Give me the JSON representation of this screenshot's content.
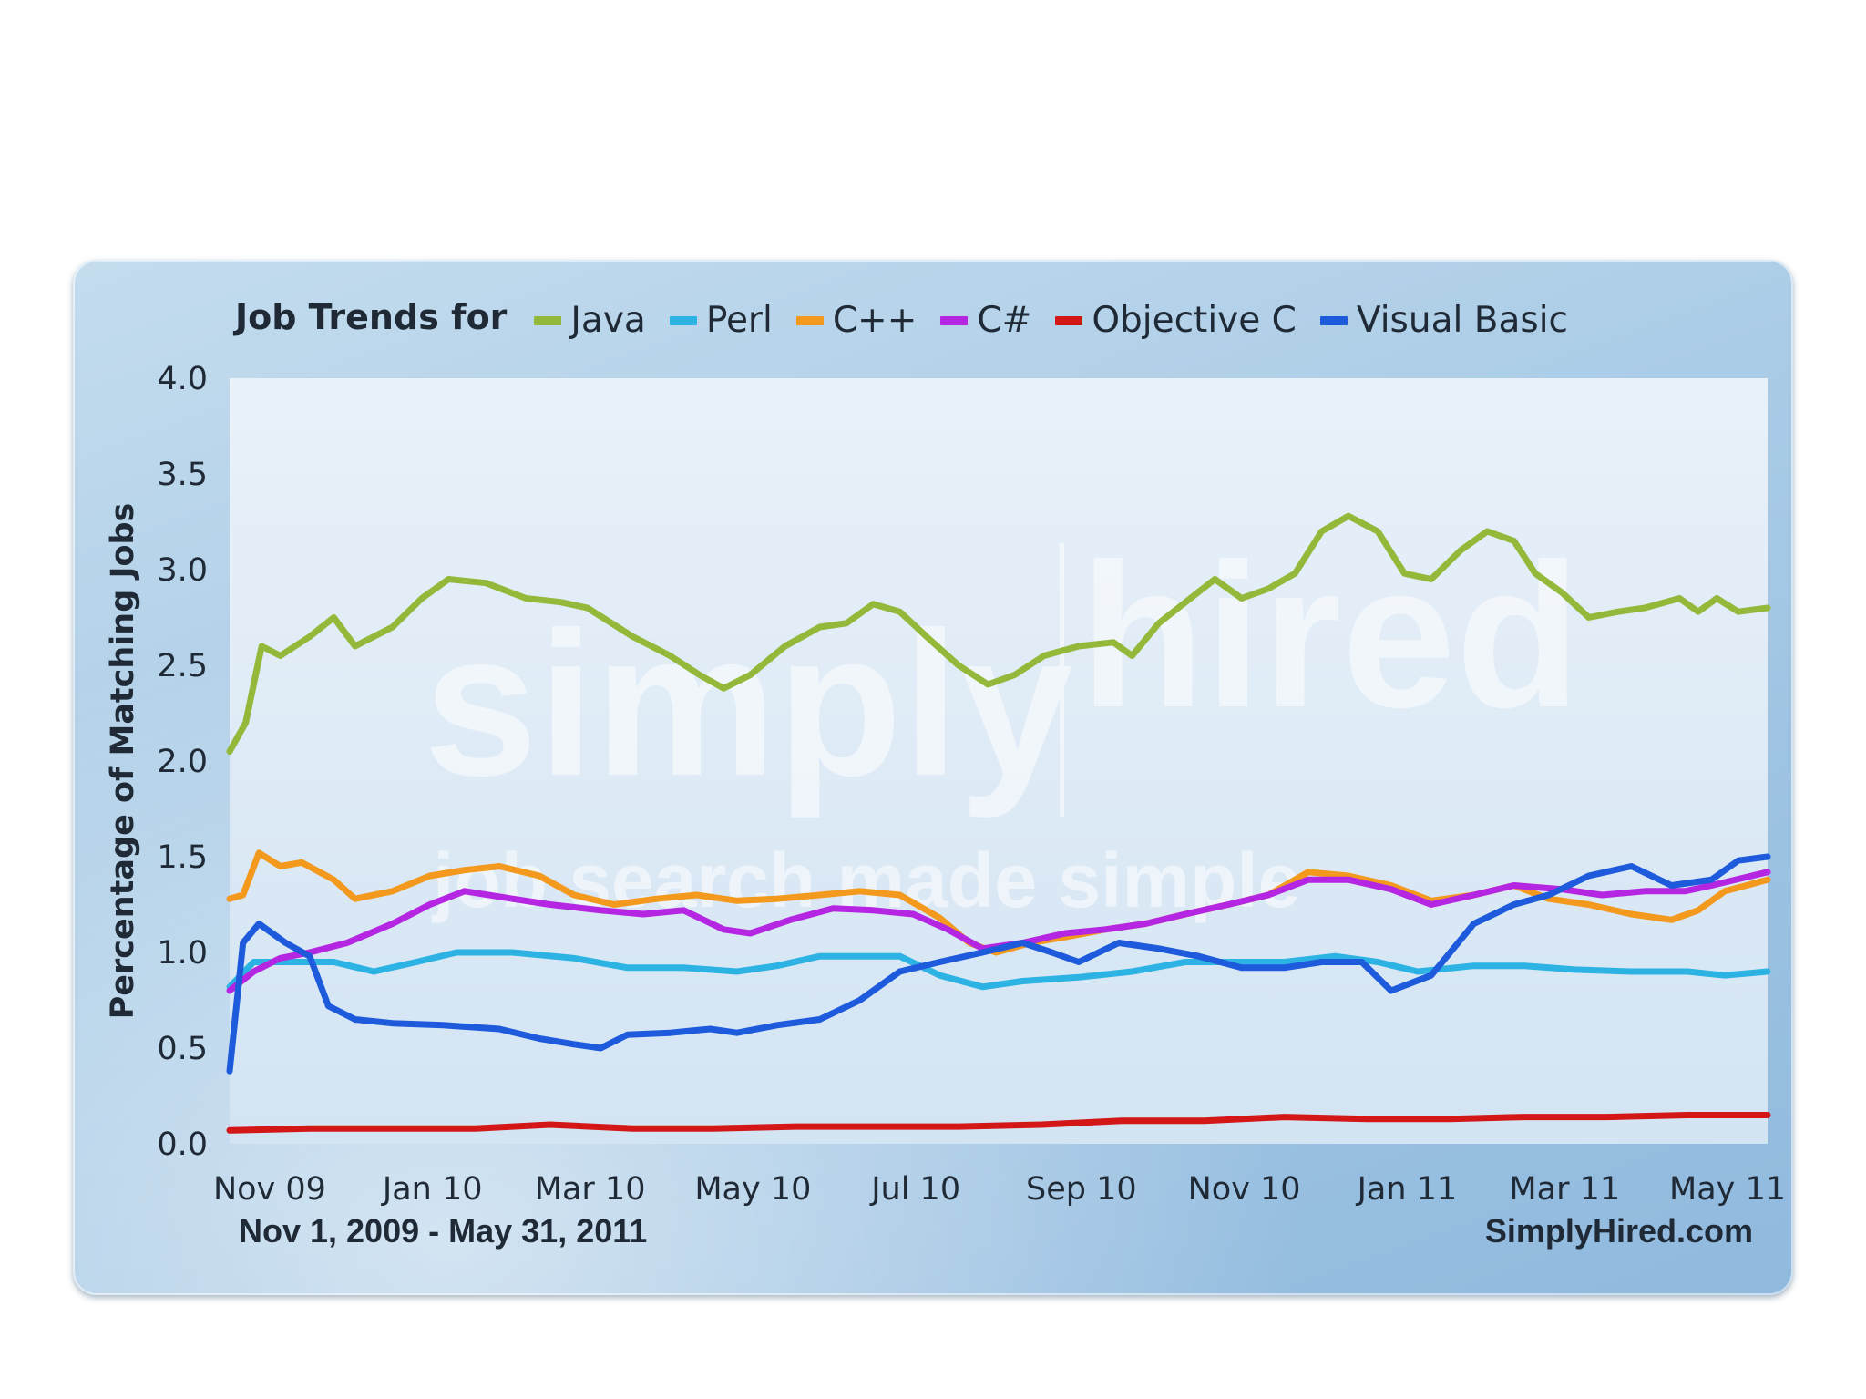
{
  "chart_data": {
    "type": "line",
    "title_prefix": "Job Trends for",
    "ylabel": "Percentage of Matching Jobs",
    "ylim": [
      0,
      4
    ],
    "yticks": [
      "0.0",
      "0.5",
      "1.0",
      "1.5",
      "2.0",
      "2.5",
      "3.0",
      "3.5",
      "4.0"
    ],
    "x_range": [
      "2009-11-01",
      "2011-05-31"
    ],
    "xtick_labels": [
      "Nov 09",
      "Jan 10",
      "Mar 10",
      "May 10",
      "Jul 10",
      "Sep 10",
      "Nov 10",
      "Jan 11",
      "Mar 11",
      "May 11"
    ],
    "date_range_label": "Nov 1, 2009 - May 31, 2011",
    "source_label": "SimplyHired.com",
    "watermark": {
      "line1": "simply",
      "line2": "hired",
      "line3": "job search made simple"
    },
    "legend_placement": "top",
    "grid": false,
    "series": [
      {
        "name": "Java",
        "color": "#94b93a",
        "points": [
          [
            "2009-11-01",
            2.05
          ],
          [
            "2009-11-07",
            2.2
          ],
          [
            "2009-11-13",
            2.6
          ],
          [
            "2009-11-20",
            2.55
          ],
          [
            "2009-12-01",
            2.65
          ],
          [
            "2009-12-10",
            2.75
          ],
          [
            "2009-12-18",
            2.6
          ],
          [
            "2010-01-01",
            2.7
          ],
          [
            "2010-01-12",
            2.85
          ],
          [
            "2010-01-22",
            2.95
          ],
          [
            "2010-02-05",
            2.93
          ],
          [
            "2010-02-20",
            2.85
          ],
          [
            "2010-03-05",
            2.83
          ],
          [
            "2010-03-15",
            2.8
          ],
          [
            "2010-04-01",
            2.65
          ],
          [
            "2010-04-15",
            2.55
          ],
          [
            "2010-04-26",
            2.45
          ],
          [
            "2010-05-05",
            2.38
          ],
          [
            "2010-05-15",
            2.45
          ],
          [
            "2010-05-28",
            2.6
          ],
          [
            "2010-06-10",
            2.7
          ],
          [
            "2010-06-20",
            2.72
          ],
          [
            "2010-06-30",
            2.82
          ],
          [
            "2010-07-10",
            2.78
          ],
          [
            "2010-07-20",
            2.65
          ],
          [
            "2010-08-01",
            2.5
          ],
          [
            "2010-08-12",
            2.4
          ],
          [
            "2010-08-22",
            2.45
          ],
          [
            "2010-09-02",
            2.55
          ],
          [
            "2010-09-15",
            2.6
          ],
          [
            "2010-09-28",
            2.62
          ],
          [
            "2010-10-05",
            2.55
          ],
          [
            "2010-10-15",
            2.72
          ],
          [
            "2010-10-25",
            2.83
          ],
          [
            "2010-11-05",
            2.95
          ],
          [
            "2010-11-15",
            2.85
          ],
          [
            "2010-11-25",
            2.9
          ],
          [
            "2010-12-05",
            2.98
          ],
          [
            "2010-12-15",
            3.2
          ],
          [
            "2010-12-25",
            3.28
          ],
          [
            "2011-01-05",
            3.2
          ],
          [
            "2011-01-15",
            2.98
          ],
          [
            "2011-01-25",
            2.95
          ],
          [
            "2011-02-05",
            3.1
          ],
          [
            "2011-02-15",
            3.2
          ],
          [
            "2011-02-25",
            3.15
          ],
          [
            "2011-03-05",
            2.98
          ],
          [
            "2011-03-15",
            2.88
          ],
          [
            "2011-03-25",
            2.75
          ],
          [
            "2011-04-05",
            2.78
          ],
          [
            "2011-04-15",
            2.8
          ],
          [
            "2011-04-28",
            2.85
          ],
          [
            "2011-05-05",
            2.78
          ],
          [
            "2011-05-12",
            2.85
          ],
          [
            "2011-05-20",
            2.78
          ],
          [
            "2011-05-31",
            2.8
          ]
        ]
      },
      {
        "name": "Perl",
        "color": "#2cb3e3",
        "points": [
          [
            "2009-11-01",
            0.82
          ],
          [
            "2009-11-10",
            0.95
          ],
          [
            "2009-11-25",
            0.95
          ],
          [
            "2009-12-10",
            0.95
          ],
          [
            "2009-12-25",
            0.9
          ],
          [
            "2010-01-10",
            0.95
          ],
          [
            "2010-01-25",
            1.0
          ],
          [
            "2010-02-15",
            1.0
          ],
          [
            "2010-03-10",
            0.97
          ],
          [
            "2010-03-30",
            0.92
          ],
          [
            "2010-04-20",
            0.92
          ],
          [
            "2010-05-10",
            0.9
          ],
          [
            "2010-05-25",
            0.93
          ],
          [
            "2010-06-10",
            0.98
          ],
          [
            "2010-06-25",
            0.98
          ],
          [
            "2010-07-10",
            0.98
          ],
          [
            "2010-07-25",
            0.88
          ],
          [
            "2010-08-10",
            0.82
          ],
          [
            "2010-08-25",
            0.85
          ],
          [
            "2010-09-15",
            0.87
          ],
          [
            "2010-10-05",
            0.9
          ],
          [
            "2010-10-25",
            0.95
          ],
          [
            "2010-11-10",
            0.95
          ],
          [
            "2010-12-01",
            0.95
          ],
          [
            "2010-12-20",
            0.98
          ],
          [
            "2011-01-05",
            0.95
          ],
          [
            "2011-01-20",
            0.9
          ],
          [
            "2011-02-10",
            0.93
          ],
          [
            "2011-03-01",
            0.93
          ],
          [
            "2011-03-20",
            0.91
          ],
          [
            "2011-04-10",
            0.9
          ],
          [
            "2011-05-01",
            0.9
          ],
          [
            "2011-05-15",
            0.88
          ],
          [
            "2011-05-31",
            0.9
          ]
        ]
      },
      {
        "name": "C++",
        "color": "#f3991e",
        "points": [
          [
            "2009-11-01",
            1.28
          ],
          [
            "2009-11-06",
            1.3
          ],
          [
            "2009-11-12",
            1.52
          ],
          [
            "2009-11-20",
            1.45
          ],
          [
            "2009-11-28",
            1.47
          ],
          [
            "2009-12-10",
            1.38
          ],
          [
            "2009-12-18",
            1.28
          ],
          [
            "2010-01-01",
            1.32
          ],
          [
            "2010-01-15",
            1.4
          ],
          [
            "2010-01-28",
            1.43
          ],
          [
            "2010-02-10",
            1.45
          ],
          [
            "2010-02-25",
            1.4
          ],
          [
            "2010-03-10",
            1.3
          ],
          [
            "2010-03-25",
            1.25
          ],
          [
            "2010-04-10",
            1.28
          ],
          [
            "2010-04-25",
            1.3
          ],
          [
            "2010-05-10",
            1.27
          ],
          [
            "2010-05-25",
            1.28
          ],
          [
            "2010-06-10",
            1.3
          ],
          [
            "2010-06-25",
            1.32
          ],
          [
            "2010-07-10",
            1.3
          ],
          [
            "2010-07-25",
            1.18
          ],
          [
            "2010-08-05",
            1.05
          ],
          [
            "2010-08-15",
            1.0
          ],
          [
            "2010-08-28",
            1.05
          ],
          [
            "2010-09-10",
            1.08
          ],
          [
            "2010-09-25",
            1.12
          ],
          [
            "2010-10-10",
            1.15
          ],
          [
            "2010-10-25",
            1.2
          ],
          [
            "2010-11-10",
            1.25
          ],
          [
            "2010-11-25",
            1.3
          ],
          [
            "2010-12-10",
            1.42
          ],
          [
            "2010-12-25",
            1.4
          ],
          [
            "2011-01-10",
            1.35
          ],
          [
            "2011-01-25",
            1.27
          ],
          [
            "2011-02-10",
            1.3
          ],
          [
            "2011-02-25",
            1.35
          ],
          [
            "2011-03-10",
            1.28
          ],
          [
            "2011-03-25",
            1.25
          ],
          [
            "2011-04-10",
            1.2
          ],
          [
            "2011-04-25",
            1.17
          ],
          [
            "2011-05-05",
            1.22
          ],
          [
            "2011-05-15",
            1.32
          ],
          [
            "2011-05-31",
            1.38
          ]
        ]
      },
      {
        "name": "C#",
        "color": "#b526e2",
        "points": [
          [
            "2009-11-01",
            0.8
          ],
          [
            "2009-11-10",
            0.9
          ],
          [
            "2009-11-20",
            0.97
          ],
          [
            "2009-12-01",
            1.0
          ],
          [
            "2009-12-15",
            1.05
          ],
          [
            "2010-01-01",
            1.15
          ],
          [
            "2010-01-15",
            1.25
          ],
          [
            "2010-01-28",
            1.32
          ],
          [
            "2010-02-15",
            1.28
          ],
          [
            "2010-03-01",
            1.25
          ],
          [
            "2010-03-20",
            1.22
          ],
          [
            "2010-04-05",
            1.2
          ],
          [
            "2010-04-20",
            1.22
          ],
          [
            "2010-05-05",
            1.12
          ],
          [
            "2010-05-15",
            1.1
          ],
          [
            "2010-05-30",
            1.17
          ],
          [
            "2010-06-15",
            1.23
          ],
          [
            "2010-06-30",
            1.22
          ],
          [
            "2010-07-15",
            1.2
          ],
          [
            "2010-07-28",
            1.12
          ],
          [
            "2010-08-10",
            1.02
          ],
          [
            "2010-08-25",
            1.05
          ],
          [
            "2010-09-10",
            1.1
          ],
          [
            "2010-09-25",
            1.12
          ],
          [
            "2010-10-10",
            1.15
          ],
          [
            "2010-10-25",
            1.2
          ],
          [
            "2010-11-10",
            1.25
          ],
          [
            "2010-11-25",
            1.3
          ],
          [
            "2010-12-10",
            1.38
          ],
          [
            "2010-12-25",
            1.38
          ],
          [
            "2011-01-10",
            1.33
          ],
          [
            "2011-01-25",
            1.25
          ],
          [
            "2011-02-10",
            1.3
          ],
          [
            "2011-02-25",
            1.35
          ],
          [
            "2011-03-15",
            1.33
          ],
          [
            "2011-03-30",
            1.3
          ],
          [
            "2011-04-15",
            1.32
          ],
          [
            "2011-04-30",
            1.32
          ],
          [
            "2011-05-10",
            1.35
          ],
          [
            "2011-05-31",
            1.42
          ]
        ]
      },
      {
        "name": "Objective C",
        "color": "#d31717",
        "points": [
          [
            "2009-11-01",
            0.07
          ],
          [
            "2009-12-01",
            0.08
          ],
          [
            "2010-01-01",
            0.08
          ],
          [
            "2010-02-01",
            0.08
          ],
          [
            "2010-03-01",
            0.1
          ],
          [
            "2010-04-01",
            0.08
          ],
          [
            "2010-05-01",
            0.08
          ],
          [
            "2010-06-01",
            0.09
          ],
          [
            "2010-07-01",
            0.09
          ],
          [
            "2010-08-01",
            0.09
          ],
          [
            "2010-09-01",
            0.1
          ],
          [
            "2010-10-01",
            0.12
          ],
          [
            "2010-11-01",
            0.12
          ],
          [
            "2010-12-01",
            0.14
          ],
          [
            "2011-01-01",
            0.13
          ],
          [
            "2011-02-01",
            0.13
          ],
          [
            "2011-03-01",
            0.14
          ],
          [
            "2011-04-01",
            0.14
          ],
          [
            "2011-05-01",
            0.15
          ],
          [
            "2011-05-31",
            0.15
          ]
        ]
      },
      {
        "name": "Visual Basic",
        "color": "#1e5bdc",
        "points": [
          [
            "2009-11-01",
            0.38
          ],
          [
            "2009-11-06",
            1.05
          ],
          [
            "2009-11-12",
            1.15
          ],
          [
            "2009-11-22",
            1.05
          ],
          [
            "2009-12-01",
            0.98
          ],
          [
            "2009-12-08",
            0.72
          ],
          [
            "2009-12-18",
            0.65
          ],
          [
            "2010-01-01",
            0.63
          ],
          [
            "2010-01-20",
            0.62
          ],
          [
            "2010-02-10",
            0.6
          ],
          [
            "2010-02-25",
            0.55
          ],
          [
            "2010-03-10",
            0.52
          ],
          [
            "2010-03-20",
            0.5
          ],
          [
            "2010-03-30",
            0.57
          ],
          [
            "2010-04-15",
            0.58
          ],
          [
            "2010-04-30",
            0.6
          ],
          [
            "2010-05-10",
            0.58
          ],
          [
            "2010-05-25",
            0.62
          ],
          [
            "2010-06-10",
            0.65
          ],
          [
            "2010-06-25",
            0.75
          ],
          [
            "2010-07-10",
            0.9
          ],
          [
            "2010-07-25",
            0.95
          ],
          [
            "2010-08-10",
            1.0
          ],
          [
            "2010-08-25",
            1.05
          ],
          [
            "2010-09-05",
            1.0
          ],
          [
            "2010-09-15",
            0.95
          ],
          [
            "2010-09-30",
            1.05
          ],
          [
            "2010-10-15",
            1.02
          ],
          [
            "2010-10-30",
            0.98
          ],
          [
            "2010-11-15",
            0.92
          ],
          [
            "2010-12-01",
            0.92
          ],
          [
            "2010-12-15",
            0.95
          ],
          [
            "2010-12-30",
            0.95
          ],
          [
            "2011-01-10",
            0.8
          ],
          [
            "2011-01-25",
            0.88
          ],
          [
            "2011-02-10",
            1.15
          ],
          [
            "2011-02-25",
            1.25
          ],
          [
            "2011-03-10",
            1.3
          ],
          [
            "2011-03-25",
            1.4
          ],
          [
            "2011-04-10",
            1.45
          ],
          [
            "2011-04-25",
            1.35
          ],
          [
            "2011-05-10",
            1.38
          ],
          [
            "2011-05-20",
            1.48
          ],
          [
            "2011-05-31",
            1.5
          ]
        ]
      }
    ]
  }
}
